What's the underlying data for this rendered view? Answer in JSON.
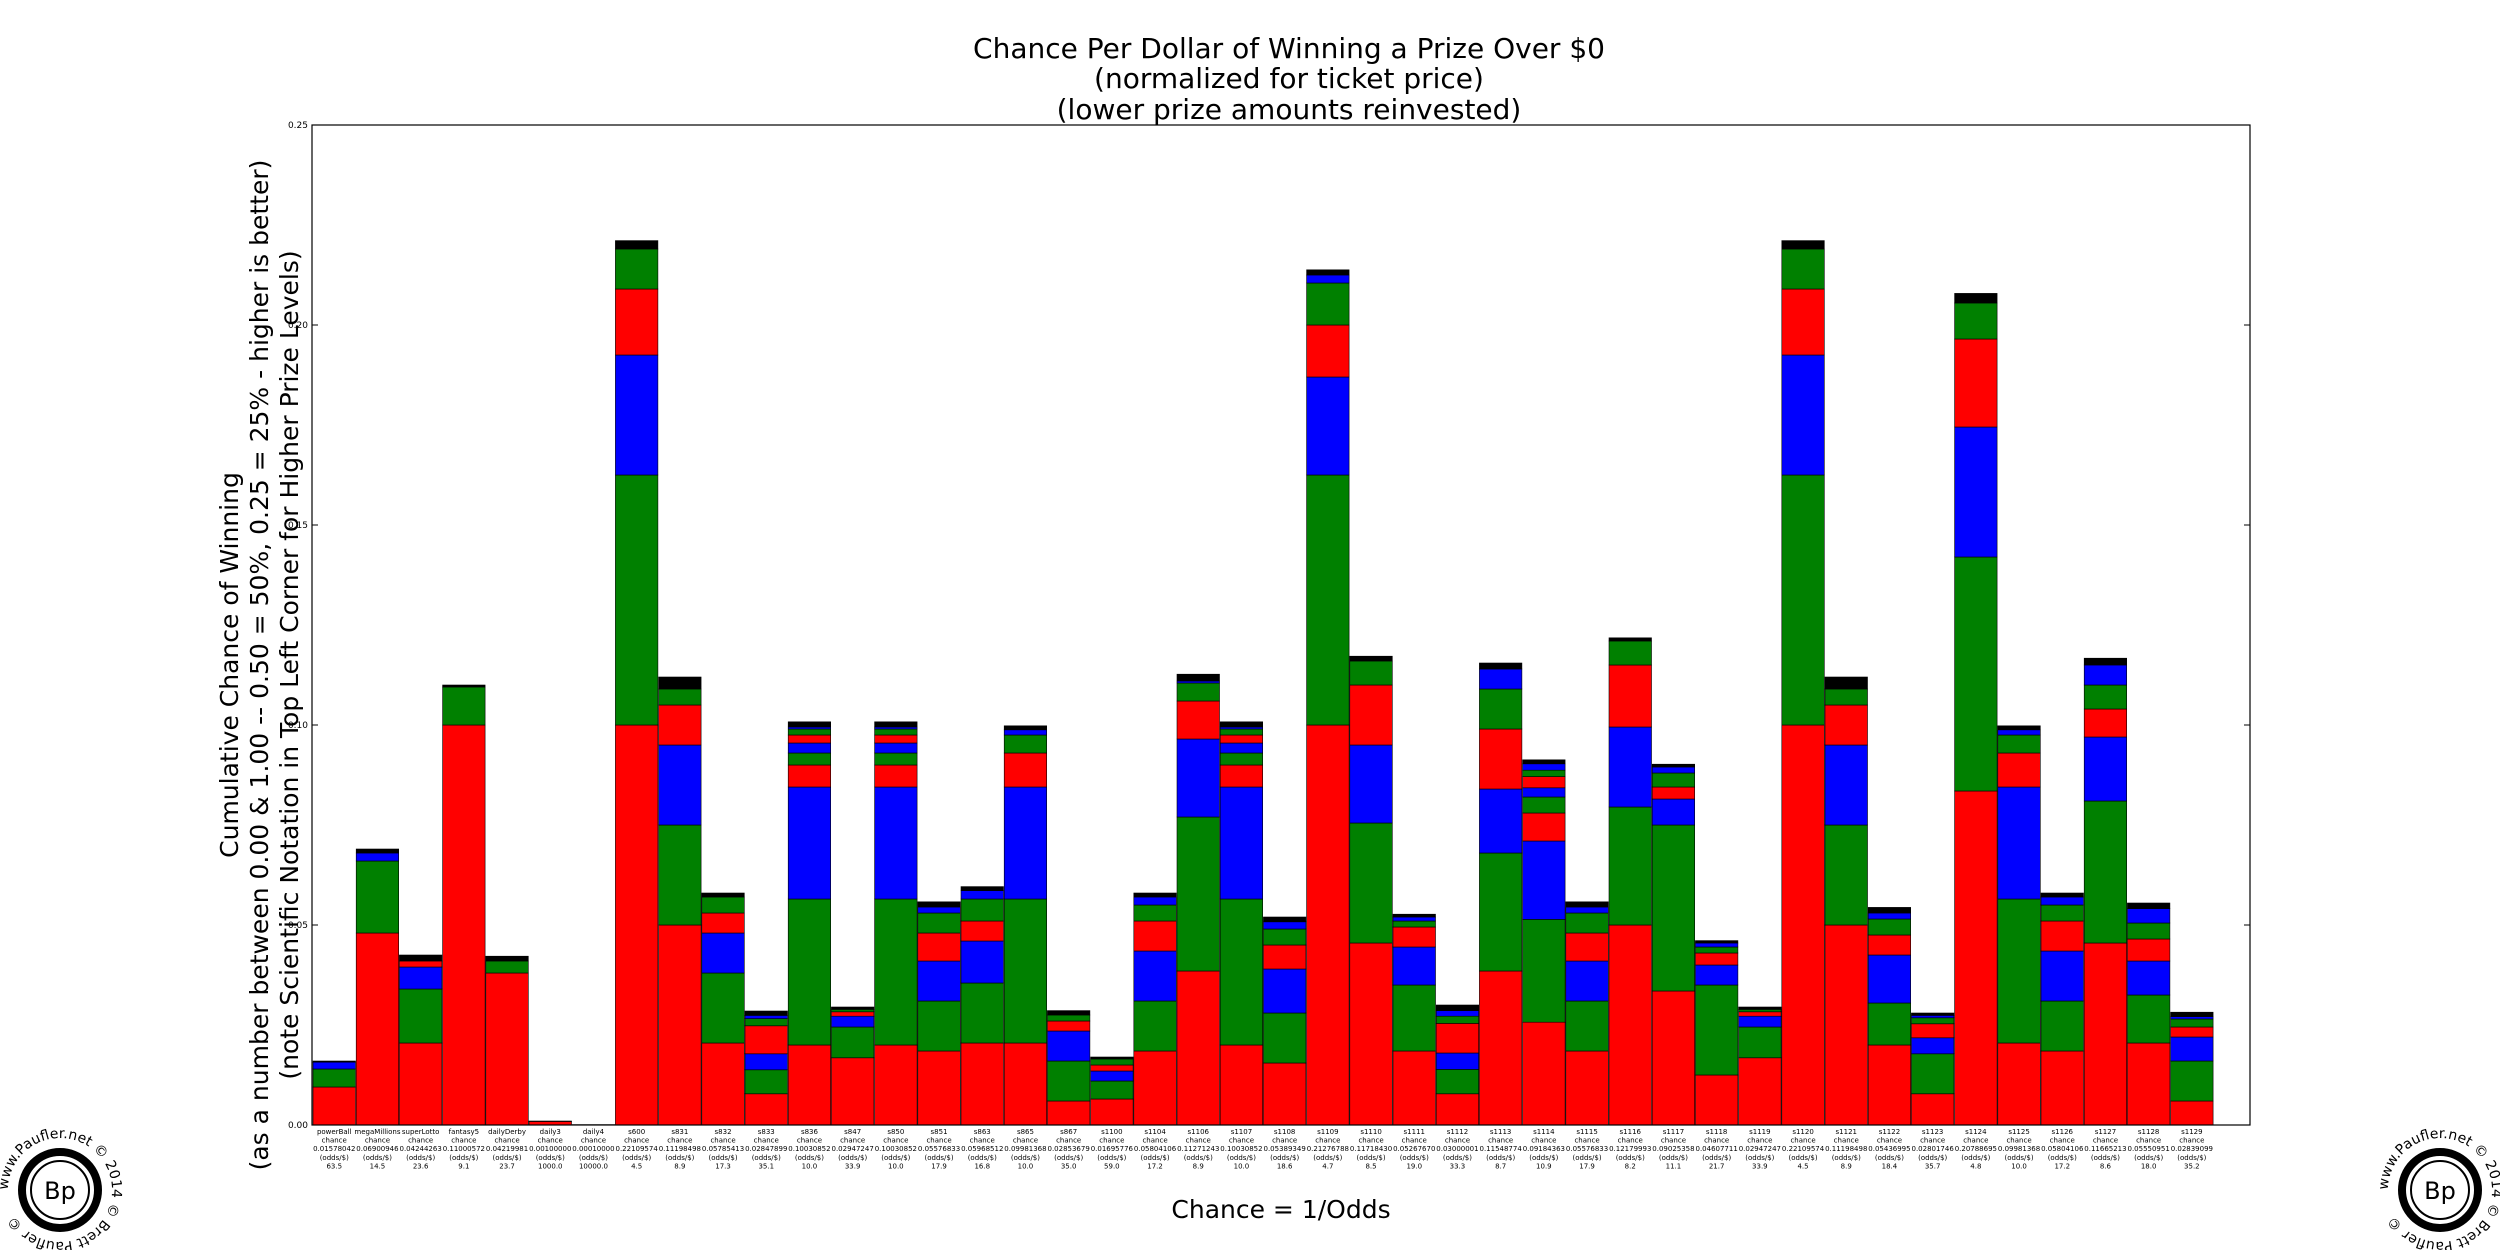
{
  "chart_data": {
    "type": "bar",
    "stacked": true,
    "title": [
      "Chance Per Dollar of Winning a Prize Over $0",
      "(normalized for ticket price)",
      "(lower prize amounts reinvested)"
    ],
    "xlabel": "Chance = 1/Odds",
    "ylabel": [
      "Cumulative Chance of Winning",
      "(as a number between 0.00 & 1.00 -- 0.50 = 50%, 0.25 = 25% - higher is better)",
      "(note Scientific Notation in Top Left Corner for Higher Prize Levels)"
    ],
    "ylim": [
      0,
      0.25
    ],
    "yticks": [
      "0.00",
      "0.05",
      "0.10",
      "0.15",
      "0.20",
      "0.25"
    ],
    "grid": false,
    "segment_order_bottom_to_top": [
      "red",
      "green",
      "blue",
      "red",
      "green",
      "blue",
      "red",
      "green",
      "blue",
      "black"
    ],
    "colors": {
      "red": "#ff0000",
      "green": "#008000",
      "blue": "#0000ff",
      "black": "#000000",
      "edge": "#000000"
    },
    "categories": [
      {
        "name": "powerBall",
        "chance": "0.01578042",
        "odds": "63.5",
        "segments": [
          0.0095,
          0.0045,
          0.0017,
          0.0,
          0.0,
          0.0,
          0.0,
          0.0,
          0.0,
          0.0003
        ]
      },
      {
        "name": "megaMillions",
        "chance": "0.06900946",
        "odds": "14.5",
        "segments": [
          0.048,
          0.018,
          0.002,
          0.0,
          0.0,
          0.0,
          0.0,
          0.0,
          0.0,
          0.001
        ]
      },
      {
        "name": "superLotto",
        "chance": "0.04244263",
        "odds": "23.6",
        "segments": [
          0.0205,
          0.0135,
          0.0055,
          0.0015,
          0.0,
          0.0,
          0.0,
          0.0,
          0.0,
          0.0015
        ]
      },
      {
        "name": "fantasy5",
        "chance": "0.11000572",
        "odds": "9.1",
        "segments": [
          0.1,
          0.0095,
          0.0,
          0.0,
          0.0,
          0.0,
          0.0,
          0.0,
          0.0,
          0.0005
        ]
      },
      {
        "name": "dailyDerby",
        "chance": "0.04219981",
        "odds": "23.7",
        "segments": [
          0.038,
          0.003,
          0.0,
          0.0,
          0.0,
          0.0,
          0.0,
          0.0,
          0.0,
          0.0012
        ]
      },
      {
        "name": "daily3",
        "chance": "0.00100000",
        "odds": "1000.0",
        "segments": [
          0.0009,
          0.0,
          0.0,
          0.0,
          0.0,
          0.0,
          0.0,
          0.0,
          0.0,
          0.0001
        ]
      },
      {
        "name": "daily4",
        "chance": "0.00010000",
        "odds": "10000.0",
        "segments": [
          0.0001,
          0.0,
          0.0,
          0.0,
          0.0,
          0.0,
          0.0,
          0.0,
          0.0,
          0.0
        ]
      },
      {
        "name": "s600",
        "chance": "0.22109574",
        "odds": "4.5",
        "segments": [
          0.1,
          0.0625,
          0.03,
          0.0165,
          0.01,
          0.0,
          0.0,
          0.0,
          0.0,
          0.0021
        ]
      },
      {
        "name": "s831",
        "chance": "0.11198498",
        "odds": "8.9",
        "segments": [
          0.05,
          0.025,
          0.02,
          0.01,
          0.004,
          0.0,
          0.0,
          0.0,
          0.0,
          0.003
        ]
      },
      {
        "name": "s832",
        "chance": "0.05785413",
        "odds": "17.3",
        "segments": [
          0.0205,
          0.0175,
          0.01,
          0.005,
          0.004,
          0.0,
          0.0,
          0.0,
          0.0,
          0.001
        ]
      },
      {
        "name": "s833",
        "chance": "0.02847899",
        "odds": "35.1",
        "segments": [
          0.0078,
          0.006,
          0.004,
          0.007,
          0.0018,
          0.0008,
          0.0,
          0.0,
          0.0,
          0.0011
        ]
      },
      {
        "name": "s836",
        "chance": "0.10030852",
        "odds": "10.0",
        "segments": [
          0.02,
          0.0365,
          0.028,
          0.0055,
          0.003,
          0.0025,
          0.002,
          0.0015,
          0.0005,
          0.0013
        ]
      },
      {
        "name": "s847",
        "chance": "0.02947247",
        "odds": "33.9",
        "segments": [
          0.0168,
          0.0077,
          0.0027,
          0.0011,
          0.0006,
          0.0,
          0.0,
          0.0,
          0.0,
          0.0006
        ]
      },
      {
        "name": "s850",
        "chance": "0.10030852",
        "odds": "10.0",
        "segments": [
          0.02,
          0.0365,
          0.028,
          0.0055,
          0.003,
          0.0025,
          0.002,
          0.0015,
          0.0005,
          0.0013
        ]
      },
      {
        "name": "s851",
        "chance": "0.05576833",
        "odds": "17.9",
        "segments": [
          0.0185,
          0.0125,
          0.01,
          0.007,
          0.005,
          0.0015,
          0.0,
          0.0,
          0.0,
          0.0013
        ]
      },
      {
        "name": "s863",
        "chance": "0.05968512",
        "odds": "16.8",
        "segments": [
          0.0205,
          0.015,
          0.0105,
          0.005,
          0.0055,
          0.0021,
          0.0,
          0.0,
          0.0,
          0.001
        ]
      },
      {
        "name": "s865",
        "chance": "0.09981368",
        "odds": "10.0",
        "segments": [
          0.0205,
          0.036,
          0.028,
          0.0085,
          0.0045,
          0.0013,
          0.0,
          0.0,
          0.0,
          0.001
        ]
      },
      {
        "name": "s867",
        "chance": "0.02853679",
        "odds": "35.0",
        "segments": [
          0.006,
          0.01,
          0.0075,
          0.0025,
          0.0015,
          0.0,
          0.0,
          0.0,
          0.0,
          0.0011
        ]
      },
      {
        "name": "s1100",
        "chance": "0.01695776",
        "odds": "59.0",
        "segments": [
          0.0065,
          0.0045,
          0.0025,
          0.0015,
          0.0015,
          0.0,
          0.0,
          0.0,
          0.0,
          0.0005
        ]
      },
      {
        "name": "s1104",
        "chance": "0.05804106",
        "odds": "17.2",
        "segments": [
          0.0185,
          0.0125,
          0.0125,
          0.0075,
          0.004,
          0.002,
          0.0,
          0.0,
          0.0,
          0.001
        ]
      },
      {
        "name": "s1106",
        "chance": "0.11271243",
        "odds": "8.9",
        "segments": [
          0.0385,
          0.0385,
          0.0195,
          0.0095,
          0.0045,
          0.0005,
          0.0,
          0.0,
          0.0,
          0.0017
        ]
      },
      {
        "name": "s1107",
        "chance": "0.10030852",
        "odds": "10.0",
        "segments": [
          0.02,
          0.0365,
          0.028,
          0.0055,
          0.003,
          0.0025,
          0.002,
          0.0015,
          0.0005,
          0.0013
        ]
      },
      {
        "name": "s1108",
        "chance": "0.05389349",
        "odds": "18.6",
        "segments": [
          0.0155,
          0.0125,
          0.011,
          0.006,
          0.004,
          0.0018,
          0.0,
          0.0,
          0.0,
          0.0012
        ]
      },
      {
        "name": "s1109",
        "chance": "0.21276788",
        "odds": "4.7",
        "segments": [
          0.1,
          0.0625,
          0.0245,
          0.013,
          0.0105,
          0.002,
          0.0,
          0.0,
          0.0,
          0.0013
        ]
      },
      {
        "name": "s1110",
        "chance": "0.11718430",
        "odds": "8.5",
        "segments": [
          0.0455,
          0.03,
          0.0195,
          0.015,
          0.006,
          0.0,
          0.0,
          0.0,
          0.0,
          0.0012
        ]
      },
      {
        "name": "s1111",
        "chance": "0.05267670",
        "odds": "19.0",
        "segments": [
          0.0185,
          0.0165,
          0.0095,
          0.005,
          0.0015,
          0.001,
          0.0,
          0.0,
          0.0,
          0.0007
        ]
      },
      {
        "name": "s1112",
        "chance": "0.03000001",
        "odds": "33.3",
        "segments": [
          0.0078,
          0.0061,
          0.0041,
          0.0074,
          0.0018,
          0.0014,
          0.0,
          0.0,
          0.0,
          0.0014
        ]
      },
      {
        "name": "s1113",
        "chance": "0.11548774",
        "odds": "8.7",
        "segments": [
          0.0385,
          0.0295,
          0.016,
          0.015,
          0.01,
          0.005,
          0.0,
          0.0,
          0.0,
          0.0015
        ]
      },
      {
        "name": "s1114",
        "chance": "0.09184363",
        "odds": "10.9",
        "segments": [
          0.0257,
          0.0257,
          0.0196,
          0.007,
          0.004,
          0.0023,
          0.0028,
          0.0016,
          0.0016,
          0.001
        ]
      },
      {
        "name": "s1115",
        "chance": "0.05576833",
        "odds": "17.9",
        "segments": [
          0.0185,
          0.0125,
          0.01,
          0.007,
          0.005,
          0.0015,
          0.0,
          0.0,
          0.0,
          0.0013
        ]
      },
      {
        "name": "s1116",
        "chance": "0.12179993",
        "odds": "8.2",
        "segments": [
          0.05,
          0.0295,
          0.02,
          0.0155,
          0.006,
          0.0,
          0.0,
          0.0,
          0.0,
          0.0008
        ]
      },
      {
        "name": "s1117",
        "chance": "0.09025358",
        "odds": "11.1",
        "segments": [
          0.0335,
          0.0415,
          0.0065,
          0.003,
          0.0035,
          0.0015,
          0.0,
          0.0,
          0.0,
          0.0007
        ]
      },
      {
        "name": "s1118",
        "chance": "0.04607711",
        "odds": "21.7",
        "segments": [
          0.0125,
          0.0225,
          0.005,
          0.003,
          0.0015,
          0.001,
          0.0,
          0.0,
          0.0,
          0.0006
        ]
      },
      {
        "name": "s1119",
        "chance": "0.02947247",
        "odds": "33.9",
        "segments": [
          0.0168,
          0.0077,
          0.0027,
          0.0011,
          0.0006,
          0.0,
          0.0,
          0.0,
          0.0,
          0.0006
        ]
      },
      {
        "name": "s1120",
        "chance": "0.22109574",
        "odds": "4.5",
        "segments": [
          0.1,
          0.0625,
          0.03,
          0.0165,
          0.01,
          0.0,
          0.0,
          0.0,
          0.0,
          0.0021
        ]
      },
      {
        "name": "s1121",
        "chance": "0.11198498",
        "odds": "8.9",
        "segments": [
          0.05,
          0.025,
          0.02,
          0.01,
          0.004,
          0.0,
          0.0,
          0.0,
          0.0,
          0.003
        ]
      },
      {
        "name": "s1122",
        "chance": "0.05436995",
        "odds": "18.4",
        "segments": [
          0.02,
          0.0105,
          0.012,
          0.005,
          0.004,
          0.0015,
          0.0,
          0.0,
          0.0,
          0.0014
        ]
      },
      {
        "name": "s1123",
        "chance": "0.02801746",
        "odds": "35.7",
        "segments": [
          0.0078,
          0.01,
          0.004,
          0.0035,
          0.0015,
          0.0006,
          0.0,
          0.0,
          0.0,
          0.0006
        ]
      },
      {
        "name": "s1124",
        "chance": "0.20788695",
        "odds": "4.8",
        "segments": [
          0.0835,
          0.0585,
          0.0325,
          0.022,
          0.009,
          0.0,
          0.0,
          0.0,
          0.0,
          0.0024
        ]
      },
      {
        "name": "s1125",
        "chance": "0.09981368",
        "odds": "10.0",
        "segments": [
          0.0205,
          0.036,
          0.028,
          0.0085,
          0.0045,
          0.0013,
          0.0,
          0.0,
          0.0,
          0.001
        ]
      },
      {
        "name": "s1126",
        "chance": "0.05804106",
        "odds": "17.2",
        "segments": [
          0.0185,
          0.0125,
          0.0125,
          0.0075,
          0.004,
          0.002,
          0.0,
          0.0,
          0.0,
          0.001
        ]
      },
      {
        "name": "s1127",
        "chance": "0.11665213",
        "odds": "8.6",
        "segments": [
          0.0455,
          0.0355,
          0.016,
          0.007,
          0.006,
          0.005,
          0.0,
          0.0,
          0.0,
          0.0017
        ]
      },
      {
        "name": "s1128",
        "chance": "0.05550951",
        "odds": "18.0",
        "segments": [
          0.0205,
          0.012,
          0.0085,
          0.0055,
          0.004,
          0.0036,
          0.0,
          0.0,
          0.0,
          0.0014
        ]
      },
      {
        "name": "s1129",
        "chance": "0.02839099",
        "odds": "35.2",
        "segments": [
          0.006,
          0.01,
          0.006,
          0.0025,
          0.002,
          0.0006,
          0.0,
          0.0,
          0.0,
          0.0011
        ]
      }
    ]
  },
  "tick_sublabels": {
    "line2": "chance",
    "line4": "(odds/$)"
  },
  "seal": {
    "initials": "Bp",
    "ring_text": "www.Paufler.net © 2014 © Brett Paufler ©"
  }
}
